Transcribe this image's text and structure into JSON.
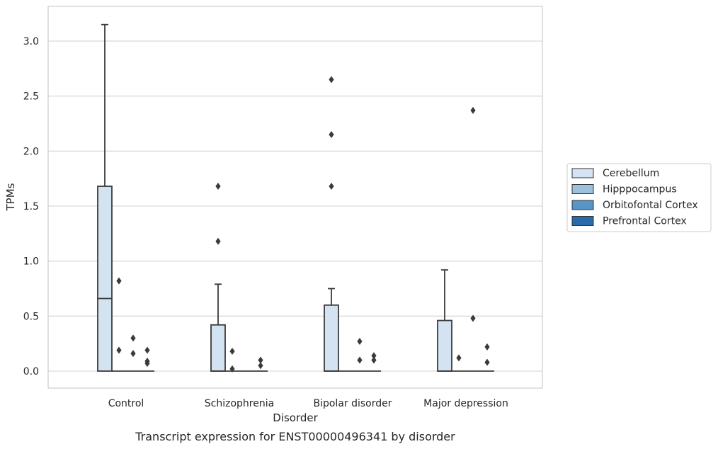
{
  "caption": "Transcript expression for ENST00000496341 by disorder",
  "chart_data": {
    "type": "box",
    "xlabel": "Disorder",
    "ylabel": "TPMs",
    "ylim": [
      -0.15,
      3.3
    ],
    "yticks": [
      "0.0",
      "0.5",
      "1.0",
      "1.5",
      "2.0",
      "2.5",
      "3.0"
    ],
    "categories": [
      "Control",
      "Schizophrenia",
      "Bipolar disorder",
      "Major depression"
    ],
    "grid": "horizontal",
    "legend_position": "right",
    "series": [
      {
        "name": "Cerebellum",
        "color": "#d4e3f1",
        "boxes": [
          {
            "q1": 0.0,
            "median": 0.66,
            "q3": 1.68,
            "whisker_low": 0.0,
            "whisker_high": 3.15,
            "outliers": []
          },
          {
            "q1": 0.0,
            "median": 0.0,
            "q3": 0.42,
            "whisker_low": 0.0,
            "whisker_high": 0.79,
            "outliers": [
              1.18,
              1.68
            ]
          },
          {
            "q1": 0.0,
            "median": 0.0,
            "q3": 0.6,
            "whisker_low": 0.0,
            "whisker_high": 0.75,
            "outliers": [
              1.68,
              2.15,
              2.65
            ]
          },
          {
            "q1": 0.0,
            "median": 0.0,
            "q3": 0.46,
            "whisker_low": 0.0,
            "whisker_high": 0.92,
            "outliers": []
          }
        ]
      },
      {
        "name": "Hipppocampus",
        "color": "#9dc1dd",
        "boxes": [
          {
            "q1": 0.0,
            "median": 0.0,
            "q3": 0.0,
            "whisker_low": 0.0,
            "whisker_high": 0.0,
            "outliers": [
              0.19,
              0.82
            ]
          },
          {
            "q1": 0.0,
            "median": 0.0,
            "q3": 0.0,
            "whisker_low": 0.0,
            "whisker_high": 0.0,
            "outliers": [
              0.02,
              0.18
            ]
          },
          {
            "q1": 0.0,
            "median": 0.0,
            "q3": 0.0,
            "whisker_low": 0.0,
            "whisker_high": 0.0,
            "outliers": []
          },
          {
            "q1": 0.0,
            "median": 0.0,
            "q3": 0.0,
            "whisker_low": 0.0,
            "whisker_high": 0.0,
            "outliers": [
              0.12
            ]
          }
        ]
      },
      {
        "name": "Orbitofontal Cortex",
        "color": "#5695c6",
        "boxes": [
          {
            "q1": 0.0,
            "median": 0.0,
            "q3": 0.0,
            "whisker_low": 0.0,
            "whisker_high": 0.0,
            "outliers": [
              0.16,
              0.3
            ]
          },
          {
            "q1": 0.0,
            "median": 0.0,
            "q3": 0.0,
            "whisker_low": 0.0,
            "whisker_high": 0.0,
            "outliers": []
          },
          {
            "q1": 0.0,
            "median": 0.0,
            "q3": 0.0,
            "whisker_low": 0.0,
            "whisker_high": 0.0,
            "outliers": [
              0.1,
              0.27
            ]
          },
          {
            "q1": 0.0,
            "median": 0.0,
            "q3": 0.0,
            "whisker_low": 0.0,
            "whisker_high": 0.0,
            "outliers": [
              0.48,
              2.37
            ]
          }
        ]
      },
      {
        "name": "Prefrontal Cortex",
        "color": "#2a6aab",
        "boxes": [
          {
            "q1": 0.0,
            "median": 0.0,
            "q3": 0.0,
            "whisker_low": 0.0,
            "whisker_high": 0.0,
            "outliers": [
              0.07,
              0.09,
              0.19
            ]
          },
          {
            "q1": 0.0,
            "median": 0.0,
            "q3": 0.0,
            "whisker_low": 0.0,
            "whisker_high": 0.0,
            "outliers": [
              0.05,
              0.1
            ]
          },
          {
            "q1": 0.0,
            "median": 0.0,
            "q3": 0.0,
            "whisker_low": 0.0,
            "whisker_high": 0.0,
            "outliers": [
              0.1,
              0.14
            ]
          },
          {
            "q1": 0.0,
            "median": 0.0,
            "q3": 0.0,
            "whisker_low": 0.0,
            "whisker_high": 0.0,
            "outliers": [
              0.08,
              0.22
            ]
          }
        ]
      }
    ]
  }
}
